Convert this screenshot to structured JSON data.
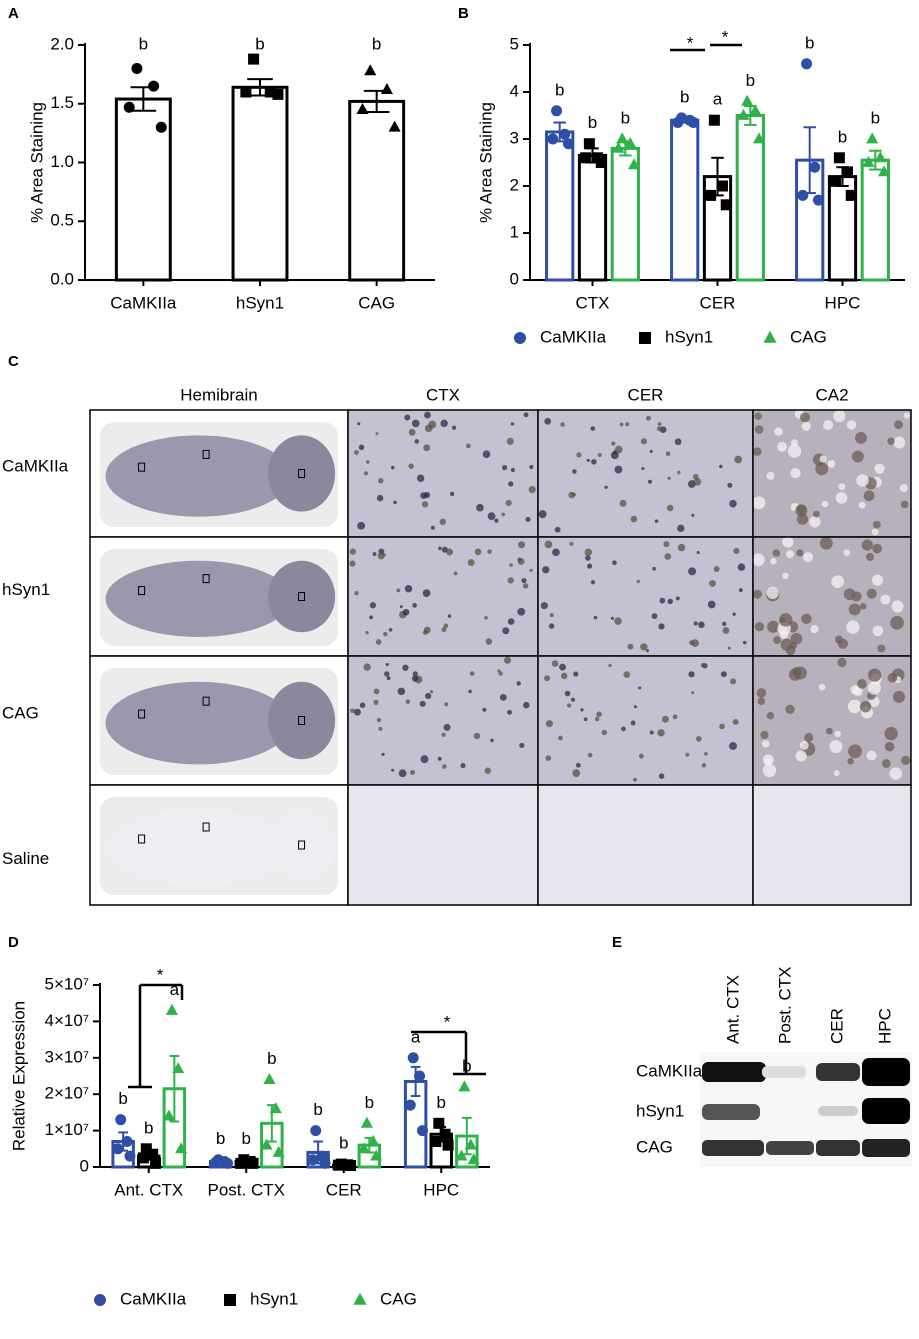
{
  "chart_data": [
    {
      "panel": "A",
      "type": "bar",
      "ylabel": "% Area Staining",
      "categories": [
        "CaMKIIa",
        "hSyn1",
        "CAG"
      ],
      "ylim": [
        0,
        2.0
      ],
      "yticks": [
        {
          "value": 0,
          "label": "0.0"
        },
        {
          "value": 0.5,
          "label": "0.5"
        },
        {
          "value": 1.0,
          "label": "1.0"
        },
        {
          "value": 1.5,
          "label": "1.5"
        },
        {
          "value": 2.0,
          "label": "2.0"
        }
      ],
      "series": [
        {
          "color": "#000000",
          "markers": [
            "circle",
            "square",
            "triangle"
          ],
          "values": [
            1.54,
            1.64,
            1.52
          ],
          "errors": [
            0.1,
            0.07,
            0.09
          ],
          "points": [
            [
              1.8,
              1.65,
              1.47,
              1.3
            ],
            [
              1.88,
              1.6,
              1.6,
              1.58
            ],
            [
              1.78,
              1.62,
              1.45,
              1.3
            ]
          ],
          "letters": [
            "b",
            "b",
            "b"
          ]
        }
      ]
    },
    {
      "panel": "B",
      "type": "bar",
      "ylabel": "% Area Staining",
      "categories": [
        "CTX",
        "CER",
        "HPC"
      ],
      "ylim": [
        0,
        5
      ],
      "yticks": [
        0,
        1,
        2,
        3,
        4,
        5
      ],
      "legend": "bottom",
      "annotations": [
        "*",
        "*"
      ],
      "series": [
        {
          "name": "CaMKIIa",
          "color": "#2e4fa5",
          "marker": "circle",
          "values": [
            3.15,
            3.4,
            2.55
          ],
          "errors": [
            0.2,
            0.05,
            0.7
          ],
          "points": [
            [
              3.6,
              3.1,
              3.0,
              2.9
            ],
            [
              3.45,
              3.4,
              3.35,
              3.35
            ],
            [
              4.6,
              2.4,
              1.8,
              1.7
            ]
          ],
          "letters": [
            "b",
            "b",
            "b"
          ]
        },
        {
          "name": "hSyn1",
          "color": "#000000",
          "marker": "square",
          "values": [
            2.65,
            2.2,
            2.2
          ],
          "errors": [
            0.15,
            0.4,
            0.2
          ],
          "points": [
            [
              2.9,
              2.6,
              2.6,
              2.5
            ],
            [
              3.4,
              2.0,
              1.8,
              1.6
            ],
            [
              2.6,
              2.3,
              2.1,
              1.8
            ]
          ],
          "letters": [
            "b",
            "a",
            "b"
          ]
        },
        {
          "name": "CAG",
          "color": "#2fb24a",
          "marker": "triangle",
          "values": [
            2.8,
            3.5,
            2.55
          ],
          "errors": [
            0.15,
            0.2,
            0.2
          ],
          "points": [
            [
              3.0,
              2.9,
              2.8,
              2.45
            ],
            [
              3.8,
              3.6,
              3.5,
              3.0
            ],
            [
              3.0,
              2.6,
              2.5,
              2.3
            ]
          ],
          "letters": [
            "b",
            "b",
            "b"
          ]
        }
      ]
    },
    {
      "panel": "D",
      "type": "bar",
      "ylabel": "Relative Expression",
      "categories": [
        "Ant. CTX",
        "Post. CTX",
        "CER",
        "HPC"
      ],
      "ylim": [
        0,
        50000000
      ],
      "yticks": [
        0,
        {
          "value": 10000000,
          "label": "1×10⁷"
        },
        {
          "value": 20000000,
          "label": "2×10⁷"
        },
        {
          "value": 30000000,
          "label": "3×10⁷"
        },
        {
          "value": 40000000,
          "label": "4×10⁷"
        },
        {
          "value": 50000000,
          "label": "5×10⁷"
        }
      ],
      "legend": "bottom",
      "annotations": [
        "*",
        "*"
      ],
      "series": [
        {
          "name": "CaMKIIa",
          "color": "#2e4fa5",
          "marker": "circle",
          "values": [
            7000000,
            1500000,
            4000000,
            23500000
          ],
          "errors": [
            2500000,
            500000,
            3000000,
            4000000
          ],
          "points": [
            [
              13000000,
              7000000,
              5000000,
              3000000
            ],
            [
              2000000,
              1500000,
              1200000,
              1000000
            ],
            [
              10000000,
              3000000,
              2000000,
              1000000
            ],
            [
              30000000,
              25000000,
              17000000,
              10000000
            ]
          ],
          "letters": [
            "b",
            "b",
            "b",
            "a"
          ]
        },
        {
          "name": "hSyn1",
          "color": "#000000",
          "marker": "square",
          "values": [
            3000000,
            1500000,
            500000,
            9000000
          ],
          "errors": [
            1000000,
            500000,
            200000,
            2000000
          ],
          "points": [
            [
              5000000,
              3500000,
              2500000,
              1000000
            ],
            [
              2000000,
              1500000,
              1000000,
              1000000
            ],
            [
              800000,
              600000,
              500000,
              400000
            ],
            [
              12000000,
              9000000,
              7000000,
              6000000
            ]
          ],
          "letters": [
            "b",
            "b",
            "b",
            "b"
          ]
        },
        {
          "name": "CAG",
          "color": "#2fb24a",
          "marker": "triangle",
          "values": [
            21500000,
            12000000,
            6000000,
            8500000
          ],
          "errors": [
            9000000,
            5000000,
            2000000,
            5000000
          ],
          "points": [
            [
              43000000,
              27000000,
              14000000,
              5000000
            ],
            [
              24000000,
              16000000,
              6000000,
              4000000
            ],
            [
              12000000,
              7000000,
              5000000,
              3000000
            ],
            [
              22000000,
              6000000,
              3000000,
              2000000
            ]
          ],
          "letters": [
            "a",
            "b",
            "b",
            "b"
          ]
        }
      ]
    }
  ],
  "image_grid": {
    "panel": "C",
    "columns": [
      "Hemibrain",
      "CTX",
      "CER",
      "CA2"
    ],
    "rows": [
      "CaMKIIa",
      "hSyn1",
      "CAG",
      "Saline"
    ]
  },
  "blot": {
    "panel": "E",
    "lanes": [
      "Ant. CTX",
      "Post. CTX",
      "CER",
      "HPC"
    ],
    "rows": [
      "CaMKIIa",
      "hSyn1",
      "CAG"
    ]
  }
}
